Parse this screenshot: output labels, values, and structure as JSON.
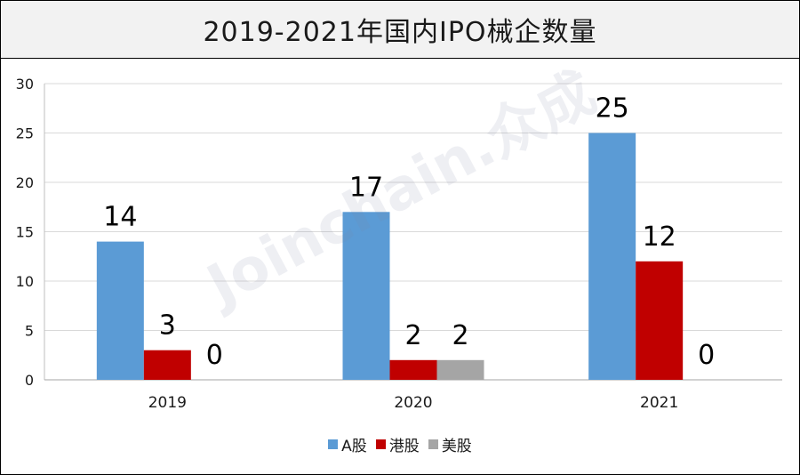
{
  "title": "2019-2021年国内IPO械企数量",
  "watermark": "Joinchain.众成",
  "colors": {
    "A股": "#5b9bd5",
    "港股": "#c00000",
    "美股": "#a5a5a5"
  },
  "chart_data": {
    "type": "bar",
    "title": "2019-2021年国内IPO械企数量",
    "categories": [
      "2019",
      "2020",
      "2021"
    ],
    "series": [
      {
        "name": "A股",
        "values": [
          14,
          17,
          25
        ]
      },
      {
        "name": "港股",
        "values": [
          3,
          2,
          12
        ]
      },
      {
        "name": "美股",
        "values": [
          0,
          2,
          0
        ]
      }
    ],
    "ylim": [
      0,
      30
    ],
    "yticks": [
      0,
      5,
      10,
      15,
      20,
      25,
      30
    ],
    "grid": true,
    "legend": "bottom"
  }
}
